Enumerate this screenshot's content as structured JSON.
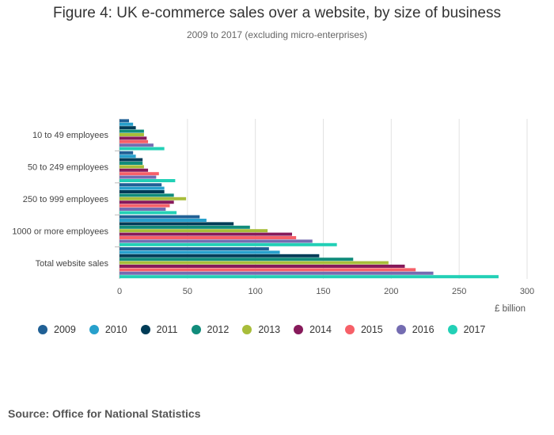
{
  "chart_data": {
    "type": "bar",
    "orientation": "horizontal",
    "title": "Figure 4: UK e-commerce sales over a website, by size of business",
    "subtitle": "2009 to 2017 (excluding micro-enterprises)",
    "xlabel": "£ billion",
    "ylabel": "",
    "xlim": [
      0,
      300
    ],
    "xticks": [
      0,
      50,
      100,
      150,
      200,
      250,
      300
    ],
    "grid": true,
    "legend_position": "bottom",
    "categories": [
      "10 to 49 employees",
      "50 to 249 employees",
      "250 to 999 employees",
      "1000 or more employees",
      "Total website sales"
    ],
    "series": [
      {
        "name": "2009",
        "color": "#206095",
        "values": [
          7,
          10,
          31,
          59,
          110
        ]
      },
      {
        "name": "2010",
        "color": "#27a0cc",
        "values": [
          10,
          12,
          33,
          64,
          118
        ]
      },
      {
        "name": "2011",
        "color": "#003c57",
        "values": [
          12,
          17,
          33,
          84,
          147
        ]
      },
      {
        "name": "2012",
        "color": "#118c7b",
        "values": [
          18,
          17,
          40,
          96,
          172
        ]
      },
      {
        "name": "2013",
        "color": "#a8bd3a",
        "values": [
          18,
          18,
          49,
          109,
          198
        ]
      },
      {
        "name": "2014",
        "color": "#871a5b",
        "values": [
          20,
          21,
          40,
          127,
          210
        ]
      },
      {
        "name": "2015",
        "color": "#f66068",
        "values": [
          21,
          29,
          37,
          130,
          218
        ]
      },
      {
        "name": "2016",
        "color": "#746cb1",
        "values": [
          25,
          27,
          34,
          142,
          231
        ]
      },
      {
        "name": "2017",
        "color": "#22d0b6",
        "values": [
          33,
          41,
          42,
          160,
          279
        ]
      }
    ]
  },
  "source": "Source: Office for National Statistics"
}
